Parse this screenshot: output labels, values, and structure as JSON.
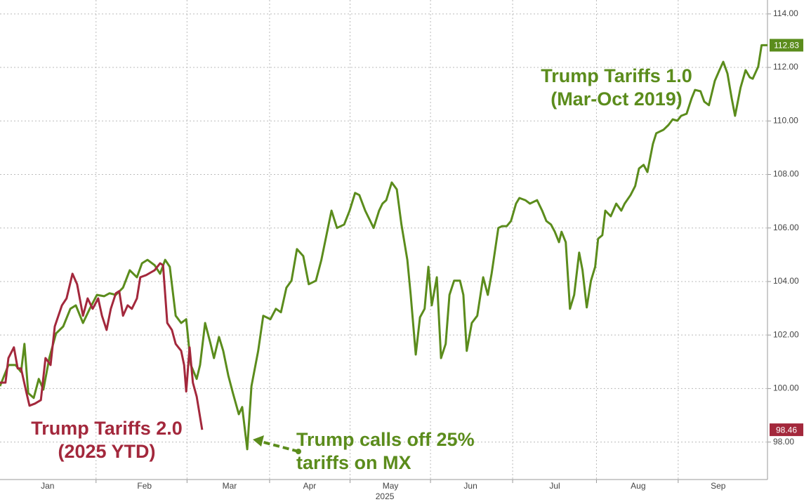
{
  "chart_data": {
    "type": "line",
    "xlabel": "2025",
    "xlim": [
      0,
      182.2
    ],
    "ylim": [
      96.6,
      114.52
    ],
    "xticks": [
      {
        "value": 11.3,
        "label": "Jan"
      },
      {
        "value": 34.3,
        "label": "Feb"
      },
      {
        "value": 54.5,
        "label": "Mar"
      },
      {
        "value": 73.5,
        "label": "Apr"
      },
      {
        "value": 92.7,
        "label": "May"
      },
      {
        "value": 111.7,
        "label": "Jun"
      },
      {
        "value": 131.7,
        "label": "Jul"
      },
      {
        "value": 151.5,
        "label": "Aug"
      },
      {
        "value": 170.5,
        "label": "Sep"
      }
    ],
    "yticks": [
      {
        "value": 98,
        "label": "98.00"
      },
      {
        "value": 100,
        "label": "100.00"
      },
      {
        "value": 102,
        "label": "102.00"
      },
      {
        "value": 104,
        "label": "104.00"
      },
      {
        "value": 106,
        "label": "106.00"
      },
      {
        "value": 108,
        "label": "108.00"
      },
      {
        "value": 110,
        "label": "110.00"
      },
      {
        "value": 112,
        "label": "112.00"
      },
      {
        "value": 114,
        "label": "114.00"
      }
    ],
    "grid": true,
    "axis_side": "right",
    "series": [
      {
        "name": "Trump Tariffs 1.0",
        "note": "(Mar-Oct 2019)",
        "color": "#5b8c1c",
        "x": [
          0,
          2,
          3.7,
          5,
          5.8,
          6.7,
          8,
          9.2,
          10.3,
          11.7,
          13.3,
          15,
          16.7,
          18,
          19.7,
          21.3,
          23,
          24.7,
          26,
          27.5,
          29.2,
          30.8,
          32.5,
          33.7,
          35,
          36.7,
          38,
          39.2,
          40.3,
          41.7,
          43,
          44.2,
          45.3,
          46.7,
          47.5,
          48.7,
          50,
          50.8,
          52,
          53,
          54.2,
          55.3,
          56.7,
          57.5,
          58.7,
          59.7,
          61.3,
          62.5,
          64.2,
          65.5,
          66.7,
          68,
          69.2,
          70.5,
          72,
          73.3,
          75,
          76.3,
          77.5,
          78.7,
          80,
          81.7,
          83,
          84.3,
          85.3,
          86.7,
          87.5,
          88.7,
          90,
          90.8,
          91.7,
          93,
          94.2,
          95.3,
          96.7,
          97.5,
          98.7,
          99.7,
          100.8,
          101.7,
          102.5,
          103.7,
          104.7,
          105.8,
          106.7,
          107.8,
          109.2,
          110,
          110.8,
          112,
          113.3,
          114.7,
          115.8,
          116.7,
          118.3,
          119.2,
          120.3,
          121.3,
          122.5,
          123.3,
          124.7,
          125.8,
          127.5,
          128.7,
          129.7,
          130.8,
          131.7,
          132.7,
          133.3,
          134.3,
          135.3,
          136.3,
          137.5,
          138.3,
          139.3,
          140.3,
          141.3,
          142,
          143,
          143.7,
          145,
          146.3,
          147.5,
          148.3,
          149.7,
          150.8,
          151.7,
          152.8,
          153.7,
          155,
          155.8,
          157.5,
          158.7,
          159.7,
          160.8,
          161.7,
          163,
          164.2,
          165,
          166.3,
          167.2,
          168.3,
          169.7,
          170.8,
          171.7,
          172.7,
          173.7,
          174.5,
          175.8,
          177,
          178,
          178.7,
          180,
          180.8,
          182.2
        ],
        "values": [
          100.09,
          100.88,
          100.88,
          100.62,
          101.67,
          99.83,
          99.65,
          100.36,
          99.96,
          101.14,
          102.06,
          102.32,
          102.98,
          103.11,
          102.45,
          102.98,
          103.5,
          103.45,
          103.56,
          103.5,
          103.77,
          104.42,
          104.16,
          104.68,
          104.81,
          104.61,
          104.29,
          104.81,
          104.55,
          102.72,
          102.45,
          102.59,
          100.88,
          100.36,
          100.88,
          102.45,
          101.67,
          101.14,
          101.93,
          101.41,
          100.49,
          99.83,
          99.04,
          99.31,
          97.73,
          100.09,
          101.41,
          102.72,
          102.59,
          102.98,
          102.85,
          103.77,
          104.03,
          105.21,
          104.95,
          103.9,
          104.03,
          104.81,
          105.73,
          106.65,
          106,
          106.13,
          106.65,
          107.31,
          107.23,
          106.65,
          106.39,
          106,
          106.65,
          106.91,
          107.04,
          107.7,
          107.44,
          106.13,
          104.81,
          103.5,
          101.27,
          102.66,
          102.98,
          104.55,
          103.11,
          104.16,
          101.14,
          101.67,
          103.5,
          104.03,
          104.03,
          103.5,
          101.41,
          102.45,
          102.72,
          104.16,
          103.5,
          104.29,
          106,
          106.07,
          106.07,
          106.26,
          106.91,
          107.12,
          107.04,
          106.91,
          107.04,
          106.65,
          106.26,
          106.13,
          105.86,
          105.47,
          105.86,
          105.47,
          102.98,
          103.5,
          105.08,
          104.42,
          103.03,
          104.03,
          104.55,
          105.6,
          105.73,
          106.65,
          106.44,
          106.91,
          106.65,
          106.91,
          107.23,
          107.57,
          108.22,
          108.36,
          108.09,
          109.14,
          109.54,
          109.67,
          109.85,
          110.06,
          110.01,
          110.19,
          110.27,
          110.85,
          111.16,
          111.11,
          110.72,
          110.59,
          111.5,
          111.9,
          112.21,
          111.77,
          110.85,
          110.19,
          111.24,
          111.9,
          111.63,
          111.58,
          112.03,
          112.83,
          112.83
        ]
      },
      {
        "name": "Trump Tariffs 2.0",
        "note": "(2025 YTD)",
        "color": "#a3283c",
        "x": [
          0,
          1.3,
          2,
          3.3,
          4.2,
          5,
          6.3,
          7,
          8.3,
          9.7,
          10.8,
          12,
          13,
          14.7,
          15.8,
          17.2,
          18.3,
          19.7,
          20.8,
          22,
          23.3,
          24.2,
          25.3,
          26.3,
          27.5,
          28.3,
          29.2,
          30.3,
          31.3,
          32.5,
          33.3,
          34.7,
          35.8,
          36.7,
          38,
          38.7,
          39.7,
          40.8,
          41.7,
          43,
          43.7,
          44.2,
          45,
          45.8,
          46.7,
          48
        ],
        "values": [
          100.22,
          100.22,
          101.14,
          101.54,
          100.75,
          100.75,
          99.83,
          99.36,
          99.44,
          99.57,
          101.14,
          100.88,
          102.32,
          103.11,
          103.37,
          104.29,
          103.9,
          102.72,
          103.37,
          102.98,
          103.37,
          102.72,
          102.19,
          102.98,
          103.56,
          103.64,
          102.72,
          103.11,
          102.98,
          103.37,
          104.16,
          104.24,
          104.34,
          104.42,
          104.68,
          104.61,
          102.45,
          102.19,
          101.67,
          101.41,
          100.88,
          99.89,
          101.54,
          100.22,
          99.7,
          98.46
        ]
      }
    ],
    "annotation": {
      "lines": [
        "Trump calls off 25%",
        "tariffs on MX"
      ],
      "color": "#5b8c1c"
    }
  }
}
